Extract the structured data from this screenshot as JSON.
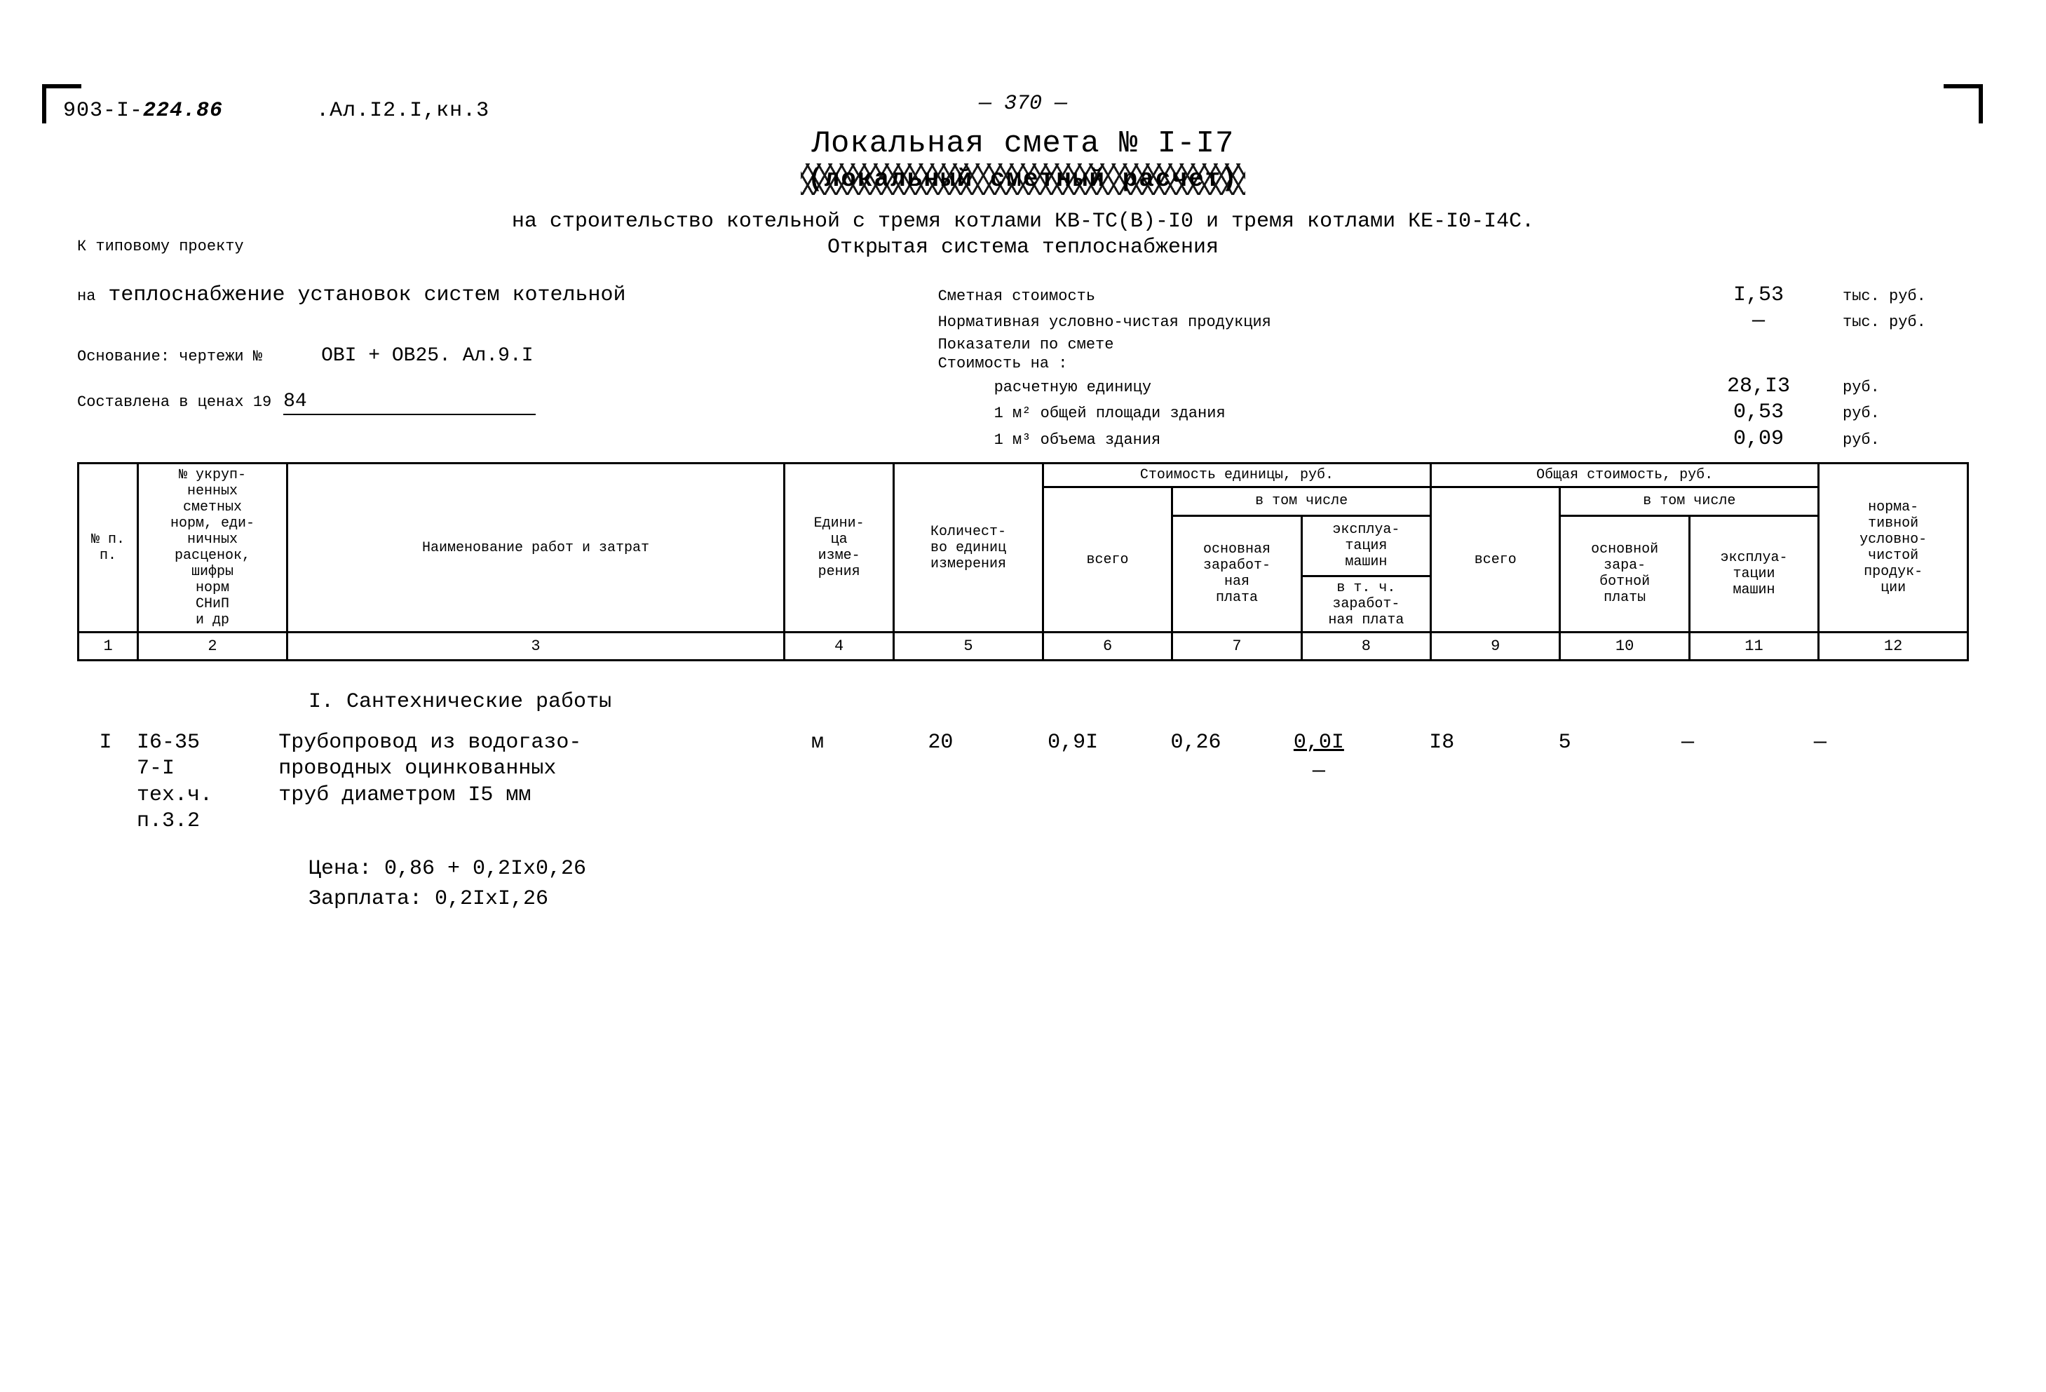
{
  "header": {
    "doc_code_prefix": "903-I-",
    "doc_code_hand": "224.86",
    "doc_code_suffix": ".Ал.I2.I,кн.3",
    "page_number": "370"
  },
  "title": {
    "main": "Локальная смета № I-I7",
    "struck": "(локальный сметный расчет)"
  },
  "subtitle": {
    "line1": "на строительство котельной с тремя котлами КВ-ТС(В)-I0 и тремя котлами КЕ-I0-I4С.",
    "line2": "Открытая система теплоснабжения",
    "k_project_label": "К типовому проекту"
  },
  "meta_left": {
    "na_prefix": "на",
    "na_text": "теплоснабжение установок систем котельной",
    "osnov_label": "Основание: чертежи №",
    "osnov_value": "ОВI + ОВ25. Ал.9.I",
    "price_year_label": "Составлена в ценах 19",
    "price_year_value": "84"
  },
  "meta_right": {
    "rows": [
      {
        "label": "Сметная стоимость",
        "value": "I,53",
        "unit": "тыс. руб.",
        "indent": false
      },
      {
        "label": "Нормативная условно-чистая продукция",
        "value": "—",
        "unit": "тыс. руб.",
        "indent": false
      },
      {
        "label": "Показатели по смете",
        "value": "",
        "unit": "",
        "indent": false
      },
      {
        "label": "Стоимость на :",
        "value": "",
        "unit": "",
        "indent": false
      },
      {
        "label": "расчетную единицу",
        "value": "28,I3",
        "unit": "руб.",
        "indent": true
      },
      {
        "label": "1 м² общей площади здания",
        "value": "0,53",
        "unit": "руб.",
        "indent": true
      },
      {
        "label": "1 м³ объема здания",
        "value": "0,09",
        "unit": "руб.",
        "indent": true
      }
    ]
  },
  "table": {
    "head": {
      "c1": "№ п. п.",
      "c2": "№ укруп-\nненных\nсметных\nнорм, еди-\nничных\nрасценок,\nшифры\nнорм\nСНиП\nи др",
      "c3": "Наименование работ и затрат",
      "c4": "Едини-\nца\nизме-\nрения",
      "c5": "Количест-\nво единиц\nизмерения",
      "g_unit": "Стоимость единицы, руб.",
      "g_total": "Общая стоимость, руб.",
      "vtom": "в том числе",
      "c6": "всего",
      "c7": "основная\nзаработ-\nная\nплата",
      "c8a": "эксплуа-\nтация\nмашин",
      "c8b": "в т. ч.\nзаработ-\nная плата",
      "c9": "всего",
      "c10": "основной\nзара-\nботной\nплаты",
      "c11": "эксплуа-\nтации\nмашин",
      "c12": "норма-\nтивной\nусловно-\nчистой\nпродук-\nции"
    },
    "colnums": [
      "1",
      "2",
      "3",
      "4",
      "5",
      "6",
      "7",
      "8",
      "9",
      "10",
      "11",
      "12"
    ]
  },
  "body": {
    "section": "I. Сантехнические работы",
    "row": {
      "n": "I",
      "code": "I6-35\n7-I\nтех.ч.\nп.3.2",
      "name": "Трубопровод из водогазо-\nпроводных оцинкованных\nтруб диаметром I5 мм",
      "unit": "м",
      "qty": "20",
      "c6": "0,9I",
      "c7": "0,26",
      "c8_top": "0,0I",
      "c8_bot": "—",
      "c9": "I8",
      "c10": "5",
      "c11": "—",
      "c12": "—"
    },
    "price_line": "Цена: 0,86 + 0,2Iх0,26",
    "salary_line": "Зарплата: 0,2IхI,26"
  }
}
